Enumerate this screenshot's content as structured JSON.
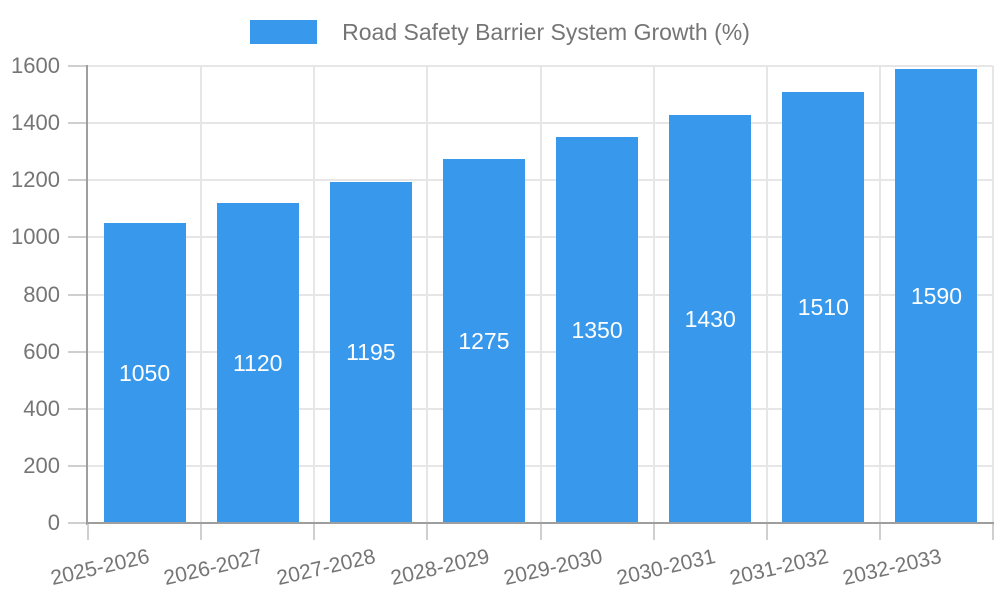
{
  "chart_data": {
    "type": "bar",
    "title": "Road Safety Barrier System Growth (%)",
    "categories": [
      "2025-2026",
      "2026-2027",
      "2027-2028",
      "2028-2029",
      "2029-2030",
      "2030-2031",
      "2031-2032",
      "2032-2033"
    ],
    "values": [
      1050,
      1120,
      1195,
      1275,
      1350,
      1430,
      1510,
      1590
    ],
    "xlabel": "",
    "ylabel": "",
    "ylim": [
      0,
      1600
    ],
    "yticks": [
      0,
      200,
      400,
      600,
      800,
      1000,
      1200,
      1400,
      1600
    ],
    "grid": true,
    "legend_position": "top-center",
    "bar_value_labels_shown": true,
    "colors": {
      "bar": "#3899ec",
      "axis": "#9e9e9e",
      "grid": "#e6e6e6",
      "tick": "#cfcfcf",
      "text": "#757575",
      "bar_label": "#ffffff"
    }
  }
}
